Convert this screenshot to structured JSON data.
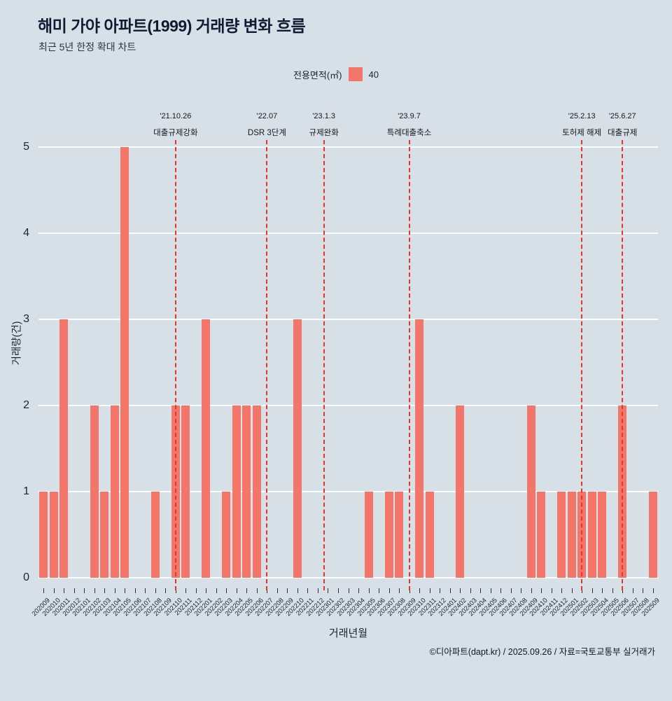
{
  "header": {
    "title": "해미 가야 아파트(1999) 거래량 변화 흐름",
    "subtitle": "최근 5년 한정 확대 차트"
  },
  "legend": {
    "label": "전용면적(㎡)",
    "series_value": "40",
    "swatch_color": "#f4766b"
  },
  "footer": {
    "credit": "©디아파트(dapt.kr) / 2025.09.26 / 자료=국토교통부 실거래가"
  },
  "chart_data": {
    "type": "bar",
    "title": "해미 가야 아파트(1999) 거래량 변화 흐름",
    "subtitle": "최근 5년 한정 확대 차트",
    "xlabel": "거래년월",
    "ylabel": "거래량(건)",
    "ylim": [
      0,
      5
    ],
    "yticks": [
      0,
      1,
      2,
      3,
      4,
      5
    ],
    "grid": true,
    "legend_position": "top",
    "bar_color": "#f4766b",
    "annotation_color": "#e53528",
    "series_name": "40",
    "categories": [
      "202009",
      "202010",
      "202011",
      "202012",
      "202101",
      "202102",
      "202103",
      "202104",
      "202105",
      "202106",
      "202107",
      "202108",
      "202109",
      "202110",
      "202111",
      "202112",
      "202201",
      "202202",
      "202203",
      "202204",
      "202205",
      "202206",
      "202207",
      "202208",
      "202209",
      "202210",
      "202211",
      "202212",
      "202301",
      "202302",
      "202303",
      "202304",
      "202305",
      "202306",
      "202307",
      "202308",
      "202309",
      "202310",
      "202311",
      "202312",
      "202401",
      "202402",
      "202403",
      "202404",
      "202405",
      "202406",
      "202407",
      "202408",
      "202409",
      "202410",
      "202411",
      "202412",
      "202501",
      "202502",
      "202503",
      "202504",
      "202505",
      "202506",
      "202507",
      "202508",
      "202509"
    ],
    "values": [
      1,
      1,
      3,
      0,
      0,
      2,
      1,
      2,
      5,
      0,
      0,
      1,
      0,
      2,
      2,
      0,
      3,
      0,
      1,
      2,
      2,
      2,
      0,
      0,
      0,
      3,
      0,
      0,
      0,
      0,
      0,
      0,
      1,
      0,
      1,
      1,
      0,
      3,
      1,
      0,
      0,
      2,
      0,
      0,
      0,
      0,
      0,
      0,
      2,
      1,
      0,
      1,
      1,
      1,
      1,
      1,
      0,
      2,
      0,
      0,
      1
    ],
    "annotations": [
      {
        "date": "'21.10.26",
        "label": "대출규제강화",
        "index": 13.0
      },
      {
        "date": "'22.07",
        "label": "DSR 3단계",
        "index": 22.0
      },
      {
        "date": "'23.1.3",
        "label": "규제완화",
        "index": 27.6
      },
      {
        "date": "'23.9.7",
        "label": "특례대출축소",
        "index": 36.0
      },
      {
        "date": "'25.2.13",
        "label": "토허제 해제",
        "index": 53.0
      },
      {
        "date": "'25.6.27",
        "label": "대출규제",
        "index": 57.0
      }
    ]
  }
}
